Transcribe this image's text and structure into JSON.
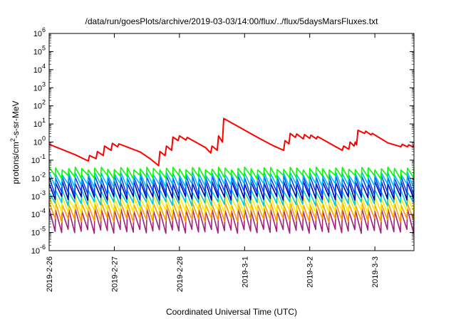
{
  "chart_data": {
    "type": "line",
    "title": "/data/run/goesPlots/archive/2019-03-03/14:00/flux/../flux/5daysMarsFluxes.txt",
    "xlabel": "Coordinated Universal Time (UTC)",
    "ylabel_parts": {
      "pre": "protons/cm",
      "sup": "2",
      "post": "-s-sr-MeV"
    },
    "x_ticks": [
      "2019-2-26",
      "2019-2-27",
      "2019-2-28",
      "2019-3-1",
      "2019-3-2",
      "2019-3-3"
    ],
    "x_range_days": [
      0,
      5.6
    ],
    "y_scale": "log",
    "y_range": [
      1e-06,
      1000000.0
    ],
    "y_ticks": [
      {
        "base": "10",
        "exp": "-6"
      },
      {
        "base": "10",
        "exp": "-5"
      },
      {
        "base": "10",
        "exp": "-4"
      },
      {
        "base": "10",
        "exp": "-3"
      },
      {
        "base": "10",
        "exp": "-2"
      },
      {
        "base": "10",
        "exp": "-1"
      },
      {
        "base": "10",
        "exp": "0"
      },
      {
        "base": "10",
        "exp": "1"
      },
      {
        "base": "10",
        "exp": "2"
      },
      {
        "base": "10",
        "exp": "3"
      },
      {
        "base": "10",
        "exp": "4"
      },
      {
        "base": "10",
        "exp": "5"
      },
      {
        "base": "10",
        "exp": "6"
      }
    ],
    "grid": false,
    "series": [
      {
        "color": "#ff0000",
        "style": "sawtooth-segments",
        "points": [
          [
            0.0,
            0.75
          ],
          [
            0.4,
            0.2
          ],
          [
            0.6,
            0.09
          ],
          [
            0.62,
            0.18
          ],
          [
            0.72,
            0.12
          ],
          [
            0.74,
            0.3
          ],
          [
            0.83,
            0.18
          ],
          [
            0.85,
            0.6
          ],
          [
            0.95,
            0.35
          ],
          [
            0.97,
            0.85
          ],
          [
            1.05,
            0.55
          ],
          [
            1.07,
            0.8
          ],
          [
            1.4,
            0.28
          ],
          [
            1.55,
            0.12
          ],
          [
            1.68,
            0.05
          ],
          [
            1.7,
            0.3
          ],
          [
            1.78,
            0.18
          ],
          [
            1.8,
            0.6
          ],
          [
            1.88,
            0.35
          ],
          [
            1.9,
            1.9
          ],
          [
            1.98,
            1.2
          ],
          [
            2.0,
            2.2
          ],
          [
            2.1,
            1.3
          ],
          [
            2.12,
            1.8
          ],
          [
            2.4,
            0.5
          ],
          [
            2.48,
            0.25
          ],
          [
            2.5,
            0.6
          ],
          [
            2.58,
            0.35
          ],
          [
            2.6,
            2.2
          ],
          [
            2.66,
            1.0
          ],
          [
            2.68,
            20.0
          ],
          [
            3.2,
            1.8
          ],
          [
            3.45,
            0.6
          ],
          [
            3.6,
            0.35
          ],
          [
            3.62,
            1.2
          ],
          [
            3.68,
            0.8
          ],
          [
            3.7,
            3.0
          ],
          [
            3.78,
            1.8
          ],
          [
            3.8,
            2.8
          ],
          [
            3.9,
            1.5
          ],
          [
            3.92,
            2.6
          ],
          [
            4.0,
            1.6
          ],
          [
            4.02,
            2.4
          ],
          [
            4.1,
            1.5
          ],
          [
            4.12,
            2.0
          ],
          [
            4.4,
            0.55
          ],
          [
            4.5,
            0.35
          ],
          [
            4.52,
            0.6
          ],
          [
            4.6,
            0.4
          ],
          [
            4.62,
            1.0
          ],
          [
            4.68,
            0.6
          ],
          [
            4.7,
            1.0
          ],
          [
            4.72,
            0.7
          ],
          [
            4.74,
            4.5
          ],
          [
            4.84,
            3.0
          ],
          [
            4.86,
            4.0
          ],
          [
            4.94,
            2.5
          ],
          [
            4.96,
            3.0
          ],
          [
            5.2,
            0.9
          ],
          [
            5.4,
            0.55
          ],
          [
            5.42,
            0.75
          ],
          [
            5.5,
            0.55
          ],
          [
            5.52,
            0.7
          ],
          [
            5.58,
            0.55
          ],
          [
            5.6,
            0.65
          ]
        ]
      },
      {
        "color": "#00ff00",
        "style": "periodic",
        "period_days": 0.1,
        "high": 0.035,
        "low": 0.012
      },
      {
        "color": "#00bbff",
        "style": "periodic",
        "period_days": 0.1,
        "high": 0.018,
        "low": 0.004
      },
      {
        "color": "#0044ff",
        "style": "periodic",
        "period_days": 0.1,
        "high": 0.012,
        "low": 0.0015
      },
      {
        "color": "#0000aa",
        "style": "periodic",
        "period_days": 0.1,
        "high": 0.006,
        "low": 0.0008
      },
      {
        "color": "#00cccc",
        "style": "periodic",
        "period_days": 0.1,
        "high": 0.002,
        "low": 0.0004
      },
      {
        "color": "#ffee00",
        "style": "periodic",
        "period_days": 0.1,
        "high": 0.0009,
        "low": 0.00015
      },
      {
        "color": "#ff9900",
        "style": "periodic",
        "period_days": 0.1,
        "high": 0.0004,
        "low": 5e-05
      },
      {
        "color": "#a0207a",
        "style": "periodic",
        "period_days": 0.1,
        "high": 0.00018,
        "low": 1.2e-05
      }
    ]
  }
}
